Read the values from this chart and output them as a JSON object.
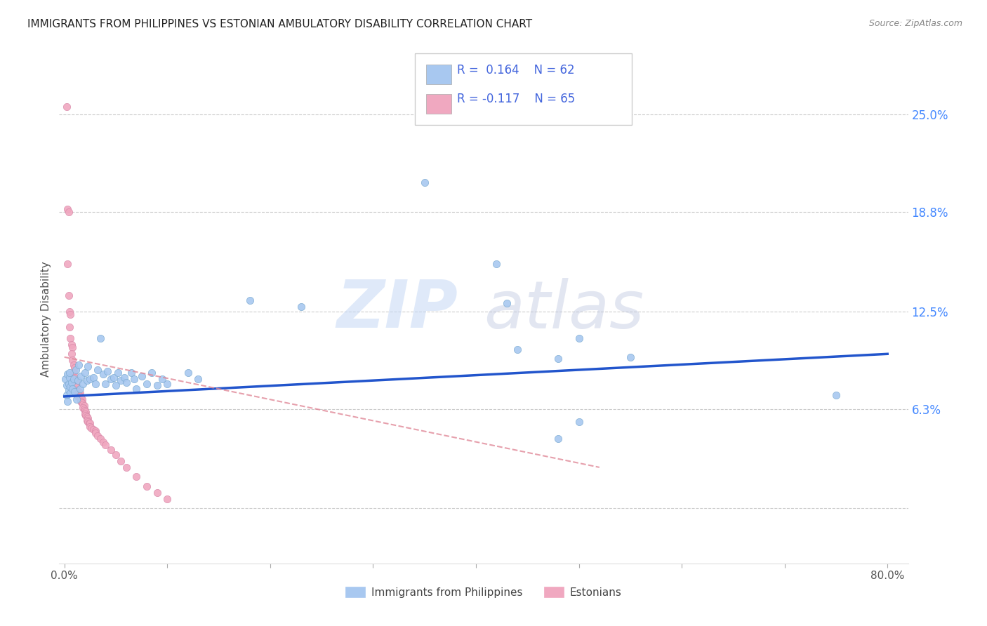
{
  "title": "IMMIGRANTS FROM PHILIPPINES VS ESTONIAN AMBULATORY DISABILITY CORRELATION CHART",
  "source": "Source: ZipAtlas.com",
  "ylabel": "Ambulatory Disability",
  "yticks": [
    0.0,
    0.063,
    0.125,
    0.188,
    0.25
  ],
  "ytick_labels": [
    "",
    "6.3%",
    "12.5%",
    "18.8%",
    "25.0%"
  ],
  "xlim": [
    -0.005,
    0.82
  ],
  "ylim": [
    -0.035,
    0.275
  ],
  "series1_color": "#a8c8f0",
  "series2_color": "#f0a8c0",
  "series1_edge": "#7aaad0",
  "series2_edge": "#d888a8",
  "trend1_color": "#2255cc",
  "trend2_color": "#e08898",
  "watermark_color": "#d0ddf0",
  "background_color": "#ffffff",
  "grid_color": "#cccccc",
  "title_fontsize": 11,
  "legend_text_color": "#4466dd",
  "blue_trend_x": [
    0.0,
    0.8
  ],
  "blue_trend_y": [
    0.071,
    0.098
  ],
  "pink_trend_x": [
    0.0,
    0.52
  ],
  "pink_trend_y": [
    0.096,
    0.026
  ],
  "blue_scatter": [
    [
      0.001,
      0.082
    ],
    [
      0.002,
      0.078
    ],
    [
      0.003,
      0.085
    ],
    [
      0.002,
      0.072
    ],
    [
      0.004,
      0.079
    ],
    [
      0.003,
      0.068
    ],
    [
      0.005,
      0.083
    ],
    [
      0.004,
      0.075
    ],
    [
      0.006,
      0.077
    ],
    [
      0.005,
      0.086
    ],
    [
      0.007,
      0.08
    ],
    [
      0.006,
      0.073
    ],
    [
      0.008,
      0.076
    ],
    [
      0.009,
      0.082
    ],
    [
      0.01,
      0.074
    ],
    [
      0.012,
      0.069
    ],
    [
      0.011,
      0.088
    ],
    [
      0.013,
      0.081
    ],
    [
      0.015,
      0.076
    ],
    [
      0.014,
      0.091
    ],
    [
      0.016,
      0.084
    ],
    [
      0.018,
      0.079
    ],
    [
      0.02,
      0.086
    ],
    [
      0.022,
      0.081
    ],
    [
      0.025,
      0.082
    ],
    [
      0.023,
      0.09
    ],
    [
      0.028,
      0.083
    ],
    [
      0.03,
      0.079
    ],
    [
      0.032,
      0.088
    ],
    [
      0.035,
      0.108
    ],
    [
      0.038,
      0.085
    ],
    [
      0.04,
      0.079
    ],
    [
      0.042,
      0.087
    ],
    [
      0.045,
      0.082
    ],
    [
      0.048,
      0.083
    ],
    [
      0.05,
      0.078
    ],
    [
      0.052,
      0.086
    ],
    [
      0.055,
      0.081
    ],
    [
      0.058,
      0.083
    ],
    [
      0.06,
      0.08
    ],
    [
      0.065,
      0.086
    ],
    [
      0.068,
      0.082
    ],
    [
      0.07,
      0.076
    ],
    [
      0.075,
      0.084
    ],
    [
      0.08,
      0.079
    ],
    [
      0.085,
      0.086
    ],
    [
      0.09,
      0.078
    ],
    [
      0.095,
      0.082
    ],
    [
      0.1,
      0.079
    ],
    [
      0.12,
      0.086
    ],
    [
      0.13,
      0.082
    ],
    [
      0.18,
      0.132
    ],
    [
      0.23,
      0.128
    ],
    [
      0.35,
      0.207
    ],
    [
      0.42,
      0.155
    ],
    [
      0.43,
      0.13
    ],
    [
      0.44,
      0.101
    ],
    [
      0.48,
      0.095
    ],
    [
      0.5,
      0.108
    ],
    [
      0.55,
      0.096
    ],
    [
      0.48,
      0.044
    ],
    [
      0.5,
      0.055
    ],
    [
      0.75,
      0.072
    ]
  ],
  "pink_scatter": [
    [
      0.002,
      0.255
    ],
    [
      0.003,
      0.19
    ],
    [
      0.004,
      0.188
    ],
    [
      0.003,
      0.155
    ],
    [
      0.004,
      0.135
    ],
    [
      0.005,
      0.125
    ],
    [
      0.006,
      0.123
    ],
    [
      0.005,
      0.115
    ],
    [
      0.006,
      0.108
    ],
    [
      0.007,
      0.104
    ],
    [
      0.008,
      0.102
    ],
    [
      0.007,
      0.098
    ],
    [
      0.008,
      0.094
    ],
    [
      0.009,
      0.091
    ],
    [
      0.01,
      0.089
    ],
    [
      0.009,
      0.086
    ],
    [
      0.01,
      0.083
    ],
    [
      0.011,
      0.08
    ],
    [
      0.012,
      0.079
    ],
    [
      0.011,
      0.077
    ],
    [
      0.012,
      0.075
    ],
    [
      0.013,
      0.074
    ],
    [
      0.012,
      0.072
    ],
    [
      0.013,
      0.071
    ],
    [
      0.014,
      0.074
    ],
    [
      0.015,
      0.073
    ],
    [
      0.014,
      0.072
    ],
    [
      0.015,
      0.071
    ],
    [
      0.016,
      0.07
    ],
    [
      0.017,
      0.069
    ],
    [
      0.016,
      0.068
    ],
    [
      0.017,
      0.067
    ],
    [
      0.018,
      0.066
    ],
    [
      0.019,
      0.065
    ],
    [
      0.018,
      0.064
    ],
    [
      0.019,
      0.063
    ],
    [
      0.02,
      0.062
    ],
    [
      0.021,
      0.061
    ],
    [
      0.02,
      0.06
    ],
    [
      0.021,
      0.059
    ],
    [
      0.022,
      0.058
    ],
    [
      0.023,
      0.057
    ],
    [
      0.022,
      0.056
    ],
    [
      0.023,
      0.055
    ],
    [
      0.024,
      0.054
    ],
    [
      0.025,
      0.054
    ],
    [
      0.025,
      0.052
    ],
    [
      0.026,
      0.051
    ],
    [
      0.028,
      0.05
    ],
    [
      0.03,
      0.049
    ],
    [
      0.03,
      0.048
    ],
    [
      0.032,
      0.046
    ],
    [
      0.035,
      0.044
    ],
    [
      0.038,
      0.042
    ],
    [
      0.04,
      0.04
    ],
    [
      0.045,
      0.037
    ],
    [
      0.05,
      0.034
    ],
    [
      0.055,
      0.03
    ],
    [
      0.06,
      0.026
    ],
    [
      0.07,
      0.02
    ],
    [
      0.08,
      0.014
    ],
    [
      0.09,
      0.01
    ],
    [
      0.1,
      0.006
    ]
  ]
}
